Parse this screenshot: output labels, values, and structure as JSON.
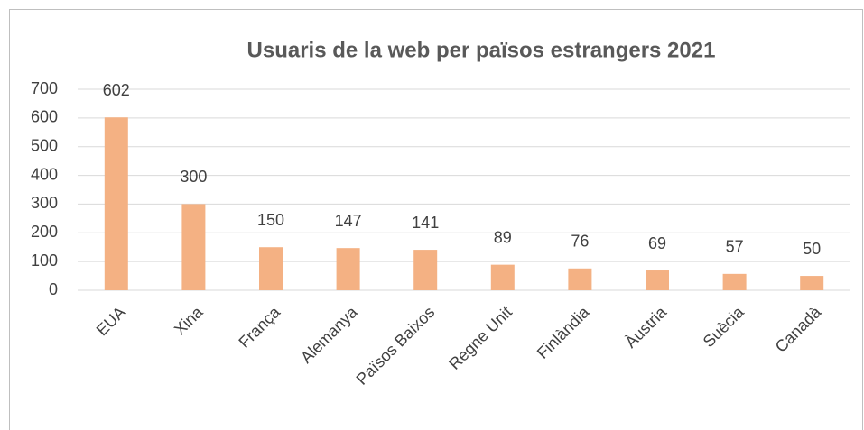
{
  "chart_data": {
    "type": "bar",
    "title": "Usuaris de la web per països estrangers 2021",
    "categories": [
      "EUA",
      "Xina",
      "França",
      "Alemanya",
      "Països Baixos",
      "Regne Unit",
      "Finlàndia",
      "Àustria",
      "Suècia",
      "Canadà"
    ],
    "values": [
      602,
      300,
      150,
      147,
      141,
      89,
      76,
      69,
      57,
      50
    ],
    "color": "#f4b183",
    "ylim": [
      0,
      700
    ],
    "yticks": [
      0,
      100,
      200,
      300,
      400,
      500,
      600,
      700
    ],
    "grid": true
  }
}
